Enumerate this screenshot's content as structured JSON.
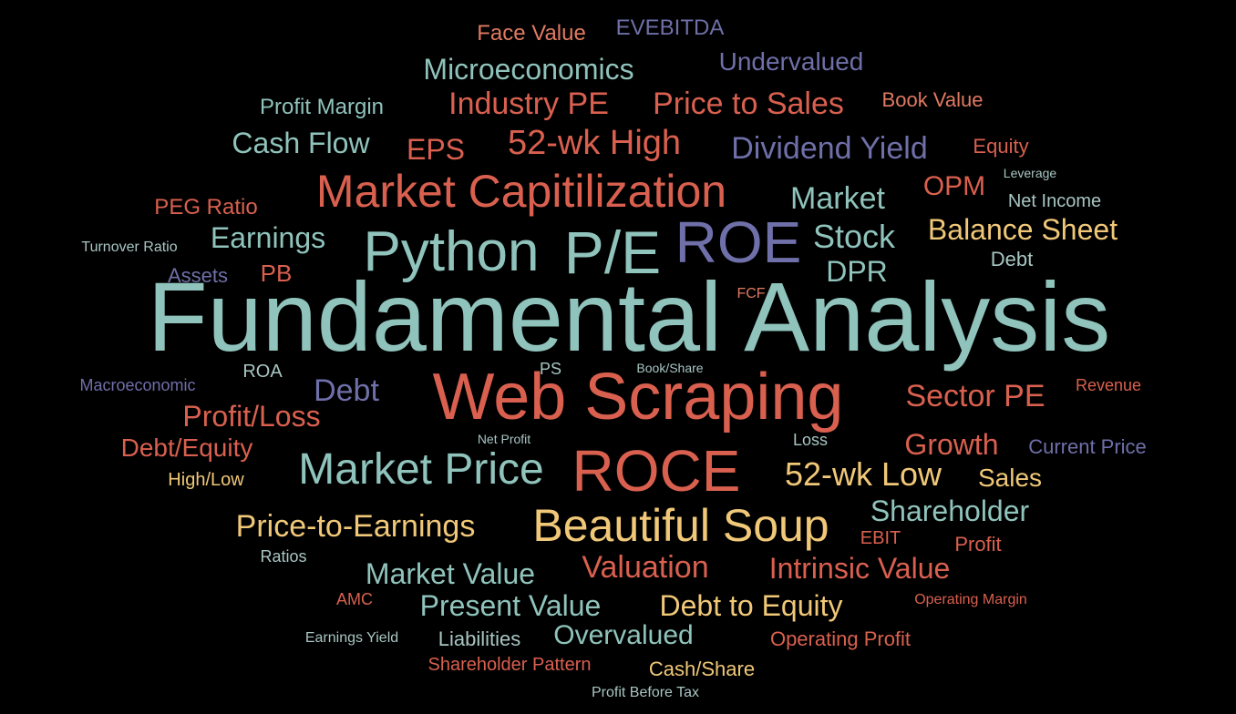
{
  "colors": {
    "background": "#000000",
    "teal": "#8fc3bb",
    "red": "#d9604f",
    "orange": "#e07a61",
    "purple": "#6f6fa9",
    "yellow": "#f0c878",
    "light": "#a8c6c2"
  },
  "words": [
    {
      "text": "Fundamental Analysis",
      "color": "teal"
    },
    {
      "text": "Web Scraping",
      "color": "red"
    },
    {
      "text": "Python",
      "color": "teal"
    },
    {
      "text": "P/E",
      "color": "teal"
    },
    {
      "text": "ROE",
      "color": "purple"
    },
    {
      "text": "ROCE",
      "color": "red"
    },
    {
      "text": "Market Capitilization",
      "color": "red"
    },
    {
      "text": "Beautiful Soup",
      "color": "yellow"
    },
    {
      "text": "Market Price",
      "color": "teal"
    },
    {
      "text": "52-wk High",
      "color": "red"
    },
    {
      "text": "52-wk Low",
      "color": "yellow"
    },
    {
      "text": "Dividend Yield",
      "color": "purple"
    },
    {
      "text": "Industry PE",
      "color": "red"
    },
    {
      "text": "Price to Sales",
      "color": "red"
    },
    {
      "text": "Microeconomics",
      "color": "teal"
    },
    {
      "text": "Undervalued",
      "color": "purple"
    },
    {
      "text": "Face Value",
      "color": "orange"
    },
    {
      "text": "EVEBITDA",
      "color": "purple"
    },
    {
      "text": "Profit Margin",
      "color": "teal"
    },
    {
      "text": "Book Value",
      "color": "orange"
    },
    {
      "text": "Cash Flow",
      "color": "teal"
    },
    {
      "text": "EPS",
      "color": "red"
    },
    {
      "text": "Equity",
      "color": "red"
    },
    {
      "text": "Leverage",
      "color": "light"
    },
    {
      "text": "OPM",
      "color": "red"
    },
    {
      "text": "Market",
      "color": "teal"
    },
    {
      "text": "Net Income",
      "color": "light"
    },
    {
      "text": "PEG Ratio",
      "color": "red"
    },
    {
      "text": "Earnings",
      "color": "teal"
    },
    {
      "text": "Stock",
      "color": "teal"
    },
    {
      "text": "Balance Sheet",
      "color": "yellow"
    },
    {
      "text": "Turnover Ratio",
      "color": "light"
    },
    {
      "text": "Assets",
      "color": "purple"
    },
    {
      "text": "PB",
      "color": "red"
    },
    {
      "text": "DPR",
      "color": "teal"
    },
    {
      "text": "Debt",
      "color": "light"
    },
    {
      "text": "FCF",
      "color": "orange"
    },
    {
      "text": "Macroeconomic",
      "color": "purple"
    },
    {
      "text": "ROA",
      "color": "light"
    },
    {
      "text": "PS",
      "color": "light"
    },
    {
      "text": "Book/Share",
      "color": "light"
    },
    {
      "text": "Debt",
      "color": "purple"
    },
    {
      "text": "Sector PE",
      "color": "red"
    },
    {
      "text": "Revenue",
      "color": "red"
    },
    {
      "text": "Profit/Loss",
      "color": "red"
    },
    {
      "text": "Debt/Equity",
      "color": "red"
    },
    {
      "text": "Net Profit",
      "color": "light"
    },
    {
      "text": "Loss",
      "color": "light"
    },
    {
      "text": "Growth",
      "color": "red"
    },
    {
      "text": "Current Price",
      "color": "purple"
    },
    {
      "text": "High/Low",
      "color": "yellow"
    },
    {
      "text": "Sales",
      "color": "yellow"
    },
    {
      "text": "Shareholder",
      "color": "teal"
    },
    {
      "text": "Price-to-Earnings",
      "color": "yellow"
    },
    {
      "text": "EBIT",
      "color": "red"
    },
    {
      "text": "Profit",
      "color": "red"
    },
    {
      "text": "Ratios",
      "color": "light"
    },
    {
      "text": "Market Value",
      "color": "teal"
    },
    {
      "text": "Valuation",
      "color": "red"
    },
    {
      "text": "Intrinsic Value",
      "color": "red"
    },
    {
      "text": "AMC",
      "color": "red"
    },
    {
      "text": "Present Value",
      "color": "teal"
    },
    {
      "text": "Debt to Equity",
      "color": "yellow"
    },
    {
      "text": "Operating Margin",
      "color": "red"
    },
    {
      "text": "Earnings Yield",
      "color": "light"
    },
    {
      "text": "Liabilities",
      "color": "light"
    },
    {
      "text": "Overvalued",
      "color": "teal"
    },
    {
      "text": "Operating Profit",
      "color": "red"
    },
    {
      "text": "Shareholder Pattern",
      "color": "red"
    },
    {
      "text": "Cash/Share",
      "color": "yellow"
    },
    {
      "text": "Profit Before Tax",
      "color": "light"
    }
  ]
}
